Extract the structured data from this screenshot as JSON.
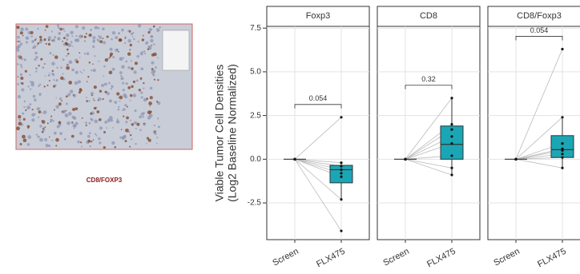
{
  "caption": "CD8/FOXP3",
  "chart_data": {
    "type": "box",
    "y_label": [
      "Viable Tumor Cell Densities",
      "(Log2 Baseline Normalized)"
    ],
    "categories": [
      "Screen",
      "FLX475"
    ],
    "ylim": [
      -4.6,
      7.6
    ],
    "yticks": [
      -2.5,
      {
        "value": 0,
        "label": "0.0"
      },
      2.5,
      {
        "value": 5,
        "label": "5.0"
      },
      7.5
    ],
    "grid": true,
    "color": "#1ba6b5",
    "panels": [
      {
        "title": "Foxp3",
        "p_value": "0.054",
        "groups": [
          {
            "values": [
              0,
              0,
              0,
              0,
              0,
              0,
              0,
              0
            ],
            "box": [
              0,
              0,
              0,
              0,
              0
            ]
          },
          {
            "values": [
              2.4,
              -0.2,
              -0.4,
              -0.6,
              -0.8,
              -1.0,
              -2.3,
              -4.1
            ],
            "box": [
              -2.3,
              -1.35,
              -0.6,
              -0.35,
              -0.2
            ]
          }
        ]
      },
      {
        "title": "CD8",
        "p_value": "0.32",
        "groups": [
          {
            "values": [
              0,
              0,
              0,
              0,
              0,
              0,
              0,
              0
            ],
            "box": [
              0,
              0,
              0,
              0,
              0
            ]
          },
          {
            "values": [
              3.5,
              2.0,
              1.7,
              1.3,
              0.9,
              0.2,
              -0.5,
              -0.9
            ],
            "box": [
              -0.9,
              0.0,
              0.85,
              1.9,
              3.5
            ]
          }
        ]
      },
      {
        "title": "CD8/Foxp3",
        "p_value": "0.054",
        "groups": [
          {
            "values": [
              0,
              0,
              0,
              0,
              0,
              0,
              0,
              0
            ],
            "box": [
              0,
              0,
              0,
              0,
              0
            ]
          },
          {
            "values": [
              6.3,
              2.4,
              0.9,
              0.6,
              0.5,
              0.3,
              0.1,
              -0.5
            ],
            "box": [
              -0.5,
              0.1,
              0.55,
              1.35,
              2.45
            ]
          }
        ]
      }
    ]
  }
}
